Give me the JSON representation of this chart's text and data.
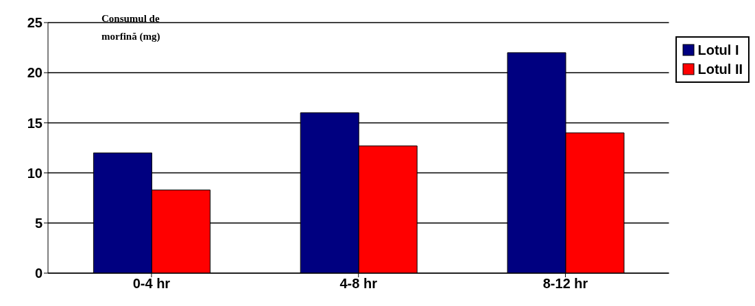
{
  "chart_data": {
    "type": "bar",
    "ylabel": "Consumul de morfină (mg)",
    "categories": [
      "0-4 hr",
      "4-8 hr",
      "8-12 hr"
    ],
    "series": [
      {
        "name": "Lotul I",
        "color": "#000080",
        "values": [
          12,
          16,
          22
        ]
      },
      {
        "name": "Lotul II",
        "color": "#ff0000",
        "values": [
          8.3,
          12.7,
          14
        ]
      }
    ],
    "ylim": [
      0,
      25
    ],
    "yticks": [
      0,
      5,
      10,
      15,
      20,
      25
    ],
    "grid": "y",
    "legend": "top right"
  }
}
